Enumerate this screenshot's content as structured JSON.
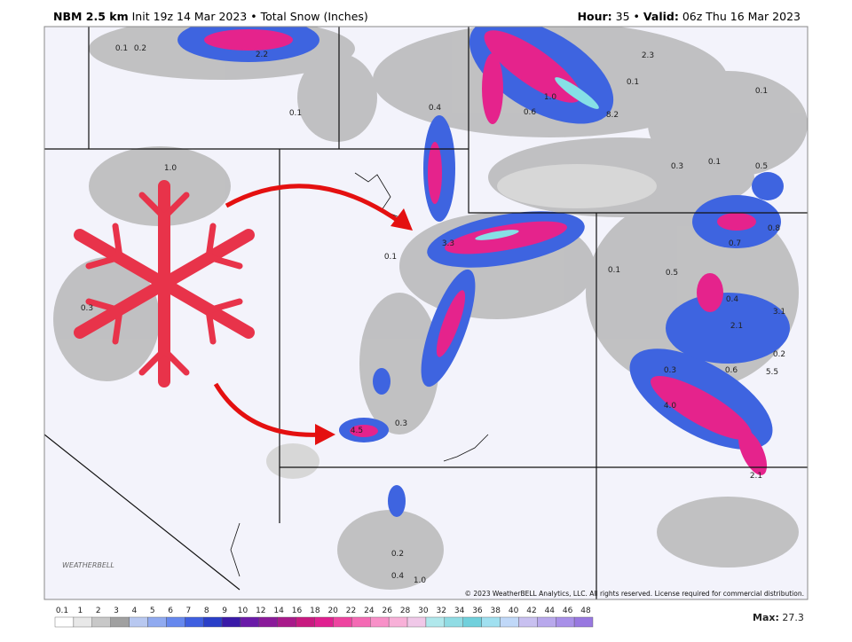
{
  "header": {
    "model": "NBM 2.5 km",
    "init": "Init 19z 14 Mar 2023 • Total Snow (Inches)",
    "hour_label": "Hour:",
    "hour": "35",
    "valid_label": "Valid:",
    "valid": "06z Thu 16 Mar 2023"
  },
  "map_labels": [
    "0.1",
    "0.2",
    "2.2",
    "0.1",
    "1.0",
    "0.4",
    "0.6",
    "1.0",
    "8.2",
    "2.3",
    "0.1",
    "0.1",
    "0.3",
    "0.1",
    "0.5",
    "0.8",
    "0.7",
    "0.1",
    "0.5",
    "0.4",
    "3.1",
    "2.1",
    "0.2",
    "0.3",
    "0.6",
    "5.5",
    "4.0",
    "2.1",
    "0.1",
    "3.3",
    "0.3",
    "4.5",
    "0.3",
    "0.2",
    "0.4",
    "1.0"
  ],
  "copyright": "© 2023 WeatherBELL Analytics, LLC. All rights reserved. License required for commercial distribution.",
  "logo": "WEATHERBELL",
  "colorbar": [
    "0.1",
    "1",
    "2",
    "3",
    "4",
    "5",
    "6",
    "7",
    "8",
    "9",
    "10",
    "12",
    "14",
    "16",
    "18",
    "20",
    "22",
    "24",
    "26",
    "28",
    "30",
    "32",
    "34",
    "36",
    "38",
    "40",
    "42",
    "44",
    "46",
    "48"
  ],
  "max_label": "Max:",
  "max": "27.3"
}
